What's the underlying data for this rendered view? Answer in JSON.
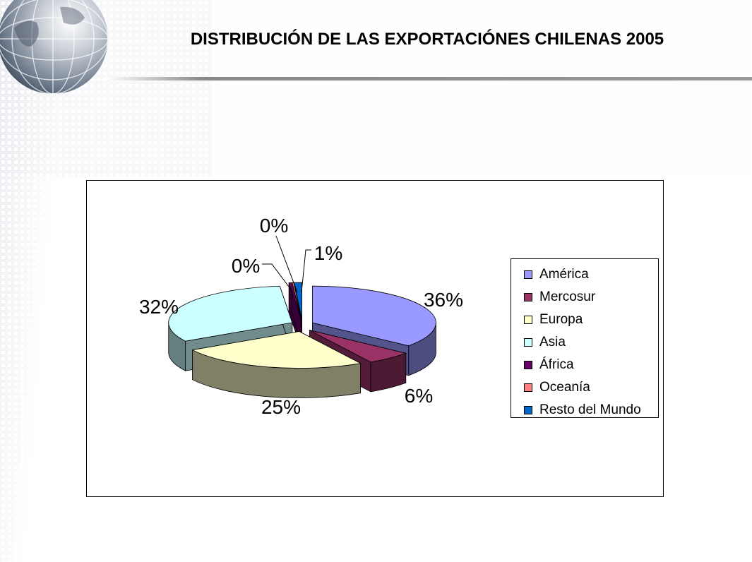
{
  "slide": {
    "title": "DISTRIBUCIÓN DE LAS EXPORTACIÓNES CHILENAS 2005"
  },
  "icons": {
    "globe": "globe-icon"
  },
  "chart_data": {
    "type": "pie",
    "style": "3d-exploded",
    "title": "",
    "legend_position": "right",
    "categories": [
      "América",
      "Mercosur",
      "Europa",
      "Asia",
      "África",
      "Oceanía",
      "Resto del Mundo"
    ],
    "values": [
      36,
      6,
      25,
      32,
      0.4,
      0.2,
      1
    ],
    "labels": [
      "36%",
      "6%",
      "25%",
      "32%",
      "0%",
      "0%",
      "1%"
    ],
    "colors": [
      "#9999ff",
      "#993366",
      "#ffffcc",
      "#ccffff",
      "#660066",
      "#ff8080",
      "#0066cc"
    ]
  }
}
